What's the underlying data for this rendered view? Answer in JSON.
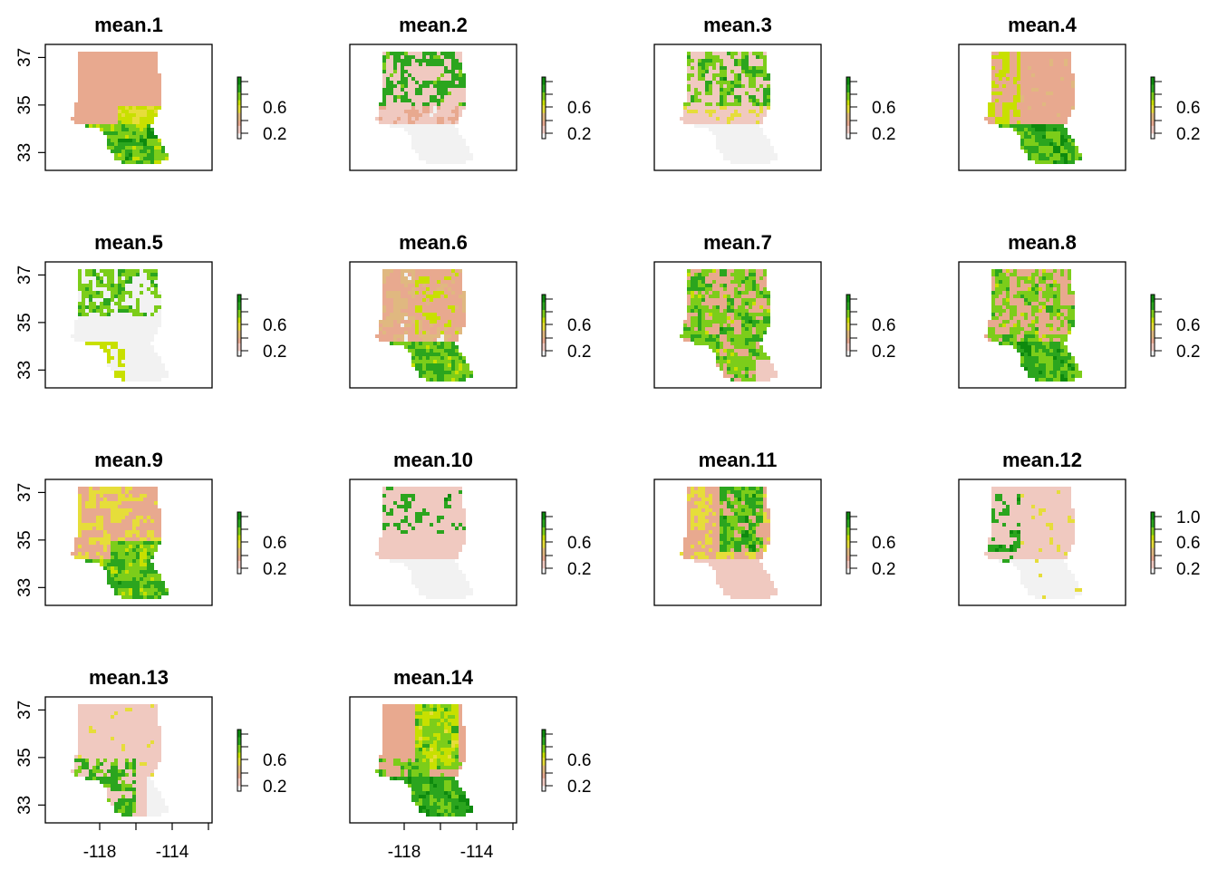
{
  "chart_data": {
    "type": "heatmap",
    "layout": "4x4 panel grid, raster maps with color legends",
    "colormap": [
      "#F2F2F2",
      "#F0C9C0",
      "#E8A98F",
      "#E0B880",
      "#E6DD3A",
      "#C8E000",
      "#7CCD1A",
      "#2BA51E",
      "#0E8A0E"
    ],
    "x_ticks": [
      "-118",
      "-114"
    ],
    "y_ticks": [
      "33",
      "35",
      "37"
    ],
    "panels": [
      {
        "title": "mean.1",
        "legend_ticks": [
          "0.6",
          "0.2"
        ],
        "pattern": "south"
      },
      {
        "title": "mean.2",
        "legend_ticks": [
          "0.6",
          "0.2"
        ],
        "pattern": "patchy-north"
      },
      {
        "title": "mean.3",
        "legend_ticks": [
          "0.6",
          "0.2"
        ],
        "pattern": "west-patches"
      },
      {
        "title": "mean.4",
        "legend_ticks": [
          "0.6",
          "0.2"
        ],
        "pattern": "south-west"
      },
      {
        "title": "mean.5",
        "legend_ticks": [
          "0.6",
          "0.2"
        ],
        "pattern": "north-patches"
      },
      {
        "title": "mean.6",
        "legend_ticks": [
          "0.6",
          "0.2"
        ],
        "pattern": "south-orange"
      },
      {
        "title": "mean.7",
        "legend_ticks": [
          "0.6",
          "0.2"
        ],
        "pattern": "widespread"
      },
      {
        "title": "mean.8",
        "legend_ticks": [
          "0.6",
          "0.2"
        ],
        "pattern": "widespread-south"
      },
      {
        "title": "mean.9",
        "legend_ticks": [
          "0.6",
          "0.2"
        ],
        "pattern": "green-south"
      },
      {
        "title": "mean.10",
        "legend_ticks": [
          "0.6",
          "0.2"
        ],
        "pattern": "sparse-north"
      },
      {
        "title": "mean.11",
        "legend_ticks": [
          "0.6",
          "0.2"
        ],
        "pattern": "center"
      },
      {
        "title": "mean.12",
        "legend_ticks": [
          "1.0",
          "0.6",
          "0.2"
        ],
        "pattern": "sparse-west"
      },
      {
        "title": "mean.13",
        "legend_ticks": [
          "0.6",
          "0.2"
        ],
        "pattern": "sparse-center"
      },
      {
        "title": "mean.14",
        "legend_ticks": [
          "0.6",
          "0.2"
        ],
        "pattern": "south-strong"
      }
    ]
  }
}
